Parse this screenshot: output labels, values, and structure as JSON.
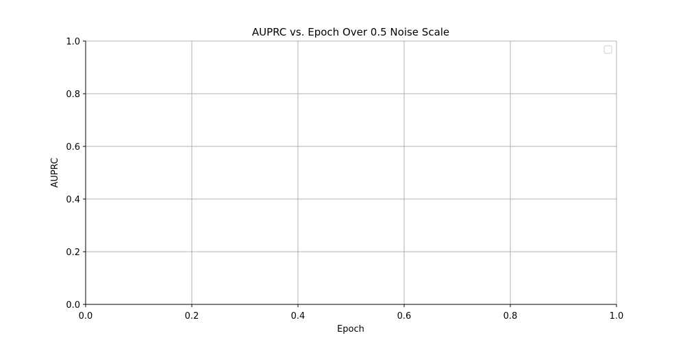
{
  "chart_data": {
    "type": "line",
    "title": "AUPRC vs. Epoch Over 0.5 Noise Scale",
    "xlabel": "Epoch",
    "ylabel": "AUPRC",
    "xlim": [
      0.0,
      1.0
    ],
    "ylim": [
      0.0,
      1.0
    ],
    "x_ticks": [
      "0.0",
      "0.2",
      "0.4",
      "0.6",
      "0.8",
      "1.0"
    ],
    "y_ticks": [
      "0.0",
      "0.2",
      "0.4",
      "0.6",
      "0.8",
      "1.0"
    ],
    "series": [],
    "grid": true,
    "legend": {
      "placement": "top-right",
      "entries": []
    }
  }
}
